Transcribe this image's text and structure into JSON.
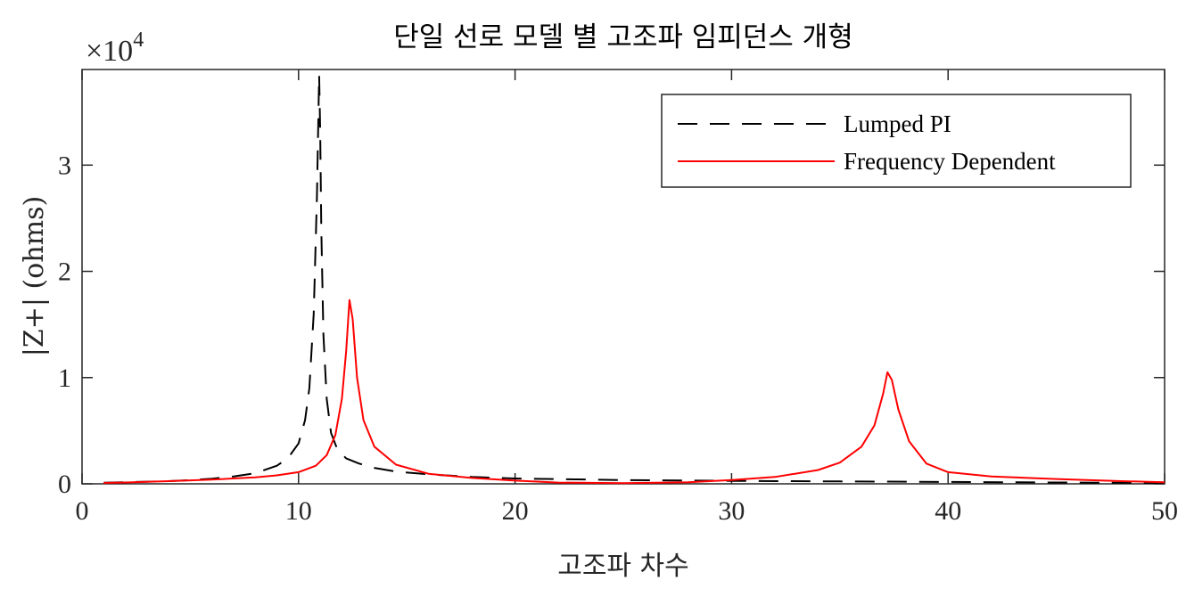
{
  "chart_data": {
    "type": "line",
    "title": "단일 선로 모델 별 고조파 임피던스 개형",
    "xlabel": "고조파 차수",
    "ylabel": "|Z+| (ohms)",
    "y_exponent_label": "×10",
    "y_exponent_power": "4",
    "y_scale_factor": 10000,
    "xlim": [
      0,
      50
    ],
    "ylim": [
      0,
      39000
    ],
    "x_ticks": [
      0,
      10,
      20,
      30,
      40,
      50
    ],
    "x_tick_labels": [
      "0",
      "10",
      "20",
      "30",
      "40",
      "50"
    ],
    "y_ticks": [
      0,
      10000,
      20000,
      30000
    ],
    "y_tick_labels": [
      "0",
      "1",
      "2",
      "3"
    ],
    "grid": false,
    "legend_position": "top-right",
    "series": [
      {
        "name": "Lumped PI",
        "color": "#000000",
        "dash": "dashed",
        "x": [
          1,
          2,
          3,
          4,
          5,
          6,
          7,
          8,
          9,
          9.5,
          10,
          10.3,
          10.5,
          10.7,
          10.85,
          10.95,
          11.0,
          11.05,
          11.15,
          11.3,
          11.5,
          11.8,
          12.2,
          12.8,
          13.5,
          14.5,
          16,
          18,
          20,
          25,
          30,
          35,
          40,
          45,
          50
        ],
        "y": [
          100,
          150,
          200,
          250,
          350,
          480,
          700,
          1000,
          1700,
          2400,
          3800,
          6000,
          9000,
          16000,
          27000,
          38500,
          33000,
          24000,
          14000,
          8000,
          4800,
          3200,
          2400,
          1900,
          1500,
          1150,
          900,
          650,
          500,
          350,
          280,
          230,
          180,
          130,
          80
        ]
      },
      {
        "name": "Frequency Dependent",
        "color": "#ff0000",
        "dash": "solid",
        "x": [
          1,
          2,
          4,
          6,
          8,
          9,
          10,
          10.8,
          11.3,
          11.7,
          12.0,
          12.2,
          12.35,
          12.5,
          12.7,
          13.0,
          13.5,
          14.5,
          16,
          18,
          20,
          22,
          25,
          28,
          30,
          32,
          34,
          35,
          36,
          36.6,
          37.0,
          37.2,
          37.4,
          37.7,
          38.2,
          39,
          40,
          42,
          45,
          48,
          50
        ],
        "y": [
          80,
          130,
          250,
          400,
          600,
          800,
          1100,
          1700,
          2700,
          4600,
          8000,
          12500,
          17300,
          15500,
          10000,
          6000,
          3500,
          1800,
          950,
          550,
          300,
          120,
          60,
          150,
          350,
          650,
          1300,
          2000,
          3500,
          5500,
          8500,
          10500,
          9800,
          7000,
          4000,
          1900,
          1100,
          700,
          450,
          250,
          150
        ]
      }
    ]
  }
}
